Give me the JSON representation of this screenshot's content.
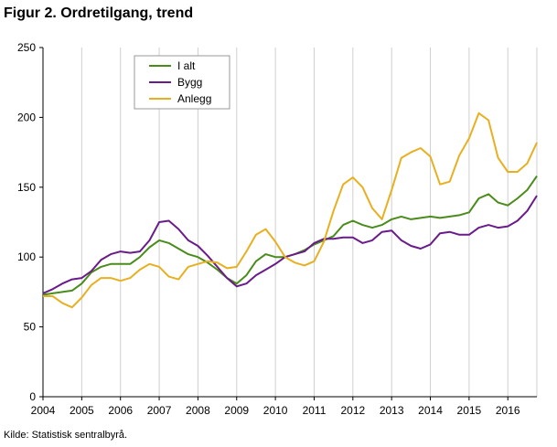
{
  "title": "Figur 2. Ordretilgang,  trend",
  "source": "Kilde: Statistisk sentralbyrå.",
  "chart_data": {
    "type": "line",
    "title": "Figur 2. Ordretilgang,  trend",
    "xlabel": "",
    "ylabel": "",
    "ylim": [
      0,
      250
    ],
    "yticks": [
      0,
      50,
      100,
      150,
      200,
      250
    ],
    "xlim": [
      2004,
      2016.75
    ],
    "xticks": [
      "2004",
      "2005",
      "2006",
      "2007",
      "2008",
      "2009",
      "2010",
      "2011",
      "2012",
      "2013",
      "2014",
      "2015",
      "2016"
    ],
    "grid": "vertical",
    "legend_position": "top-left",
    "x": [
      2004,
      2004.25,
      2004.5,
      2004.75,
      2005,
      2005.25,
      2005.5,
      2005.75,
      2006,
      2006.25,
      2006.5,
      2006.75,
      2007,
      2007.25,
      2007.5,
      2007.75,
      2008,
      2008.25,
      2008.5,
      2008.75,
      2009,
      2009.25,
      2009.5,
      2009.75,
      2010,
      2010.25,
      2010.5,
      2010.75,
      2011,
      2011.25,
      2011.5,
      2011.75,
      2012,
      2012.25,
      2012.5,
      2012.75,
      2013,
      2013.25,
      2013.5,
      2013.75,
      2014,
      2014.25,
      2014.5,
      2014.75,
      2015,
      2015.25,
      2015.5,
      2015.75,
      2016,
      2016.25,
      2016.5,
      2016.75
    ],
    "series": [
      {
        "name": "I alt",
        "color": "#4a8c1c",
        "values": [
          73,
          74,
          75,
          76,
          81,
          89,
          93,
          95,
          95,
          95,
          100,
          107,
          112,
          110,
          106,
          102,
          100,
          96,
          91,
          85,
          81,
          87,
          97,
          102,
          100,
          100,
          102,
          105,
          109,
          112,
          115,
          123,
          126,
          123,
          121,
          123,
          127,
          129,
          127,
          128,
          129,
          128,
          129,
          130,
          132,
          142,
          145,
          139,
          137,
          142,
          148,
          158
        ]
      },
      {
        "name": "Bygg",
        "color": "#6a1b8a",
        "values": [
          74,
          77,
          81,
          84,
          85,
          90,
          98,
          102,
          104,
          103,
          104,
          112,
          125,
          126,
          120,
          112,
          108,
          101,
          93,
          85,
          79,
          81,
          87,
          91,
          95,
          100,
          102,
          104,
          110,
          113,
          113,
          114,
          114,
          110,
          112,
          118,
          119,
          112,
          108,
          106,
          109,
          117,
          118,
          116,
          116,
          121,
          123,
          121,
          122,
          126,
          133,
          144
        ]
      },
      {
        "name": "Anlegg",
        "color": "#e8b020",
        "values": [
          72,
          72,
          67,
          64,
          71,
          80,
          85,
          85,
          83,
          85,
          91,
          95,
          93,
          86,
          84,
          93,
          95,
          97,
          96,
          92,
          93,
          104,
          116,
          120,
          111,
          100,
          96,
          94,
          97,
          111,
          133,
          152,
          157,
          150,
          135,
          127,
          148,
          171,
          175,
          178,
          172,
          152,
          154,
          173,
          185,
          203,
          198,
          171,
          161,
          161,
          167,
          182
        ]
      }
    ]
  }
}
